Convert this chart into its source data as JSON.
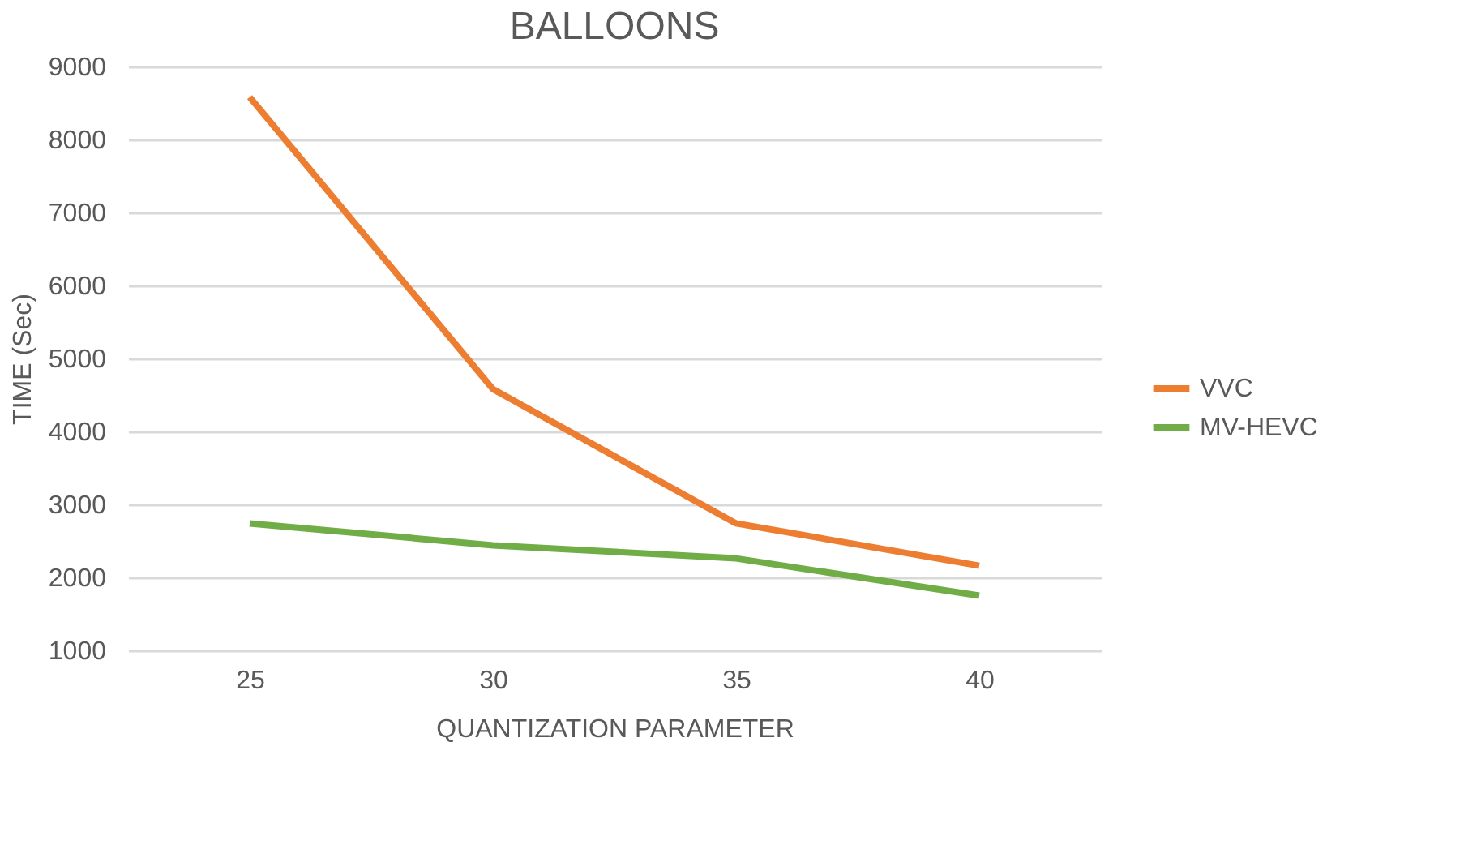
{
  "chart_data": {
    "type": "line",
    "title": "BALLOONS",
    "xlabel": "QUANTIZATION PARAMETER",
    "ylabel": "TIME (Sec)",
    "categories": [
      "25",
      "30",
      "35",
      "40"
    ],
    "series": [
      {
        "name": "VVC",
        "color": "#ed7d31",
        "values": [
          8580,
          4580,
          2740,
          2160
        ]
      },
      {
        "name": "MV-HEVC",
        "color": "#70ad47",
        "values": [
          2740,
          2440,
          2260,
          1750
        ]
      }
    ],
    "ylim": [
      1000,
      9000
    ],
    "yticks": [
      1000,
      2000,
      3000,
      4000,
      5000,
      6000,
      7000,
      8000,
      9000
    ],
    "grid": "y",
    "legend": "right",
    "marker": "none",
    "line_style": "solid"
  }
}
